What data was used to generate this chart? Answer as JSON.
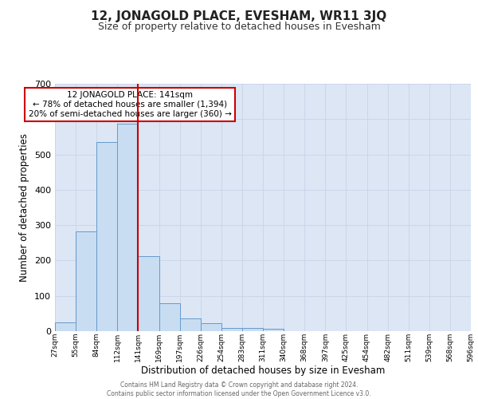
{
  "title": "12, JONAGOLD PLACE, EVESHAM, WR11 3JQ",
  "subtitle": "Size of property relative to detached houses in Evesham",
  "xlabel": "Distribution of detached houses by size in Evesham",
  "ylabel": "Number of detached properties",
  "bin_labels": [
    "27sqm",
    "55sqm",
    "84sqm",
    "112sqm",
    "141sqm",
    "169sqm",
    "197sqm",
    "226sqm",
    "254sqm",
    "283sqm",
    "311sqm",
    "340sqm",
    "368sqm",
    "397sqm",
    "425sqm",
    "454sqm",
    "482sqm",
    "511sqm",
    "539sqm",
    "568sqm",
    "596sqm"
  ],
  "bar_heights": [
    25,
    283,
    535,
    588,
    212,
    80,
    37,
    23,
    10,
    8,
    7,
    0,
    0,
    0,
    0,
    0,
    0,
    0,
    0,
    0
  ],
  "bar_color": "#c9ddf2",
  "bar_edge_color": "#6699cc",
  "vline_color": "#cc0000",
  "annotation_title": "12 JONAGOLD PLACE: 141sqm",
  "annotation_line1": "← 78% of detached houses are smaller (1,394)",
  "annotation_line2": "20% of semi-detached houses are larger (360) →",
  "annotation_box_color": "#ffffff",
  "annotation_box_edge_color": "#cc0000",
  "ylim": [
    0,
    700
  ],
  "yticks": [
    0,
    100,
    200,
    300,
    400,
    500,
    600,
    700
  ],
  "grid_color": "#c8d4e8",
  "background_color": "#dce6f5",
  "footer_line1": "Contains HM Land Registry data © Crown copyright and database right 2024.",
  "footer_line2": "Contains public sector information licensed under the Open Government Licence v3.0."
}
